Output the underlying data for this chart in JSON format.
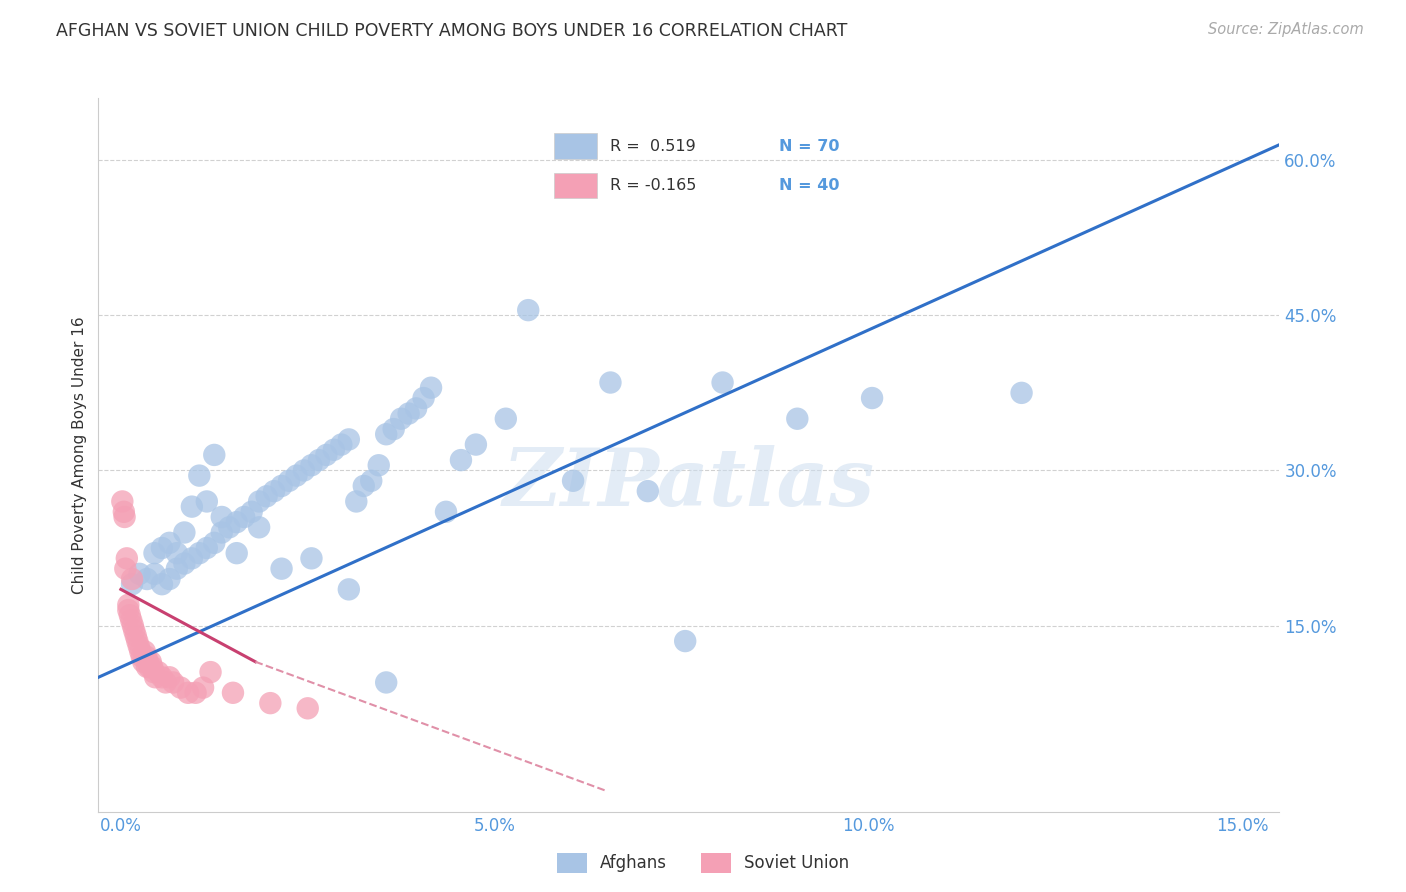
{
  "title": "AFGHAN VS SOVIET UNION CHILD POVERTY AMONG BOYS UNDER 16 CORRELATION CHART",
  "source": "Source: ZipAtlas.com",
  "ylabel": "Child Poverty Among Boys Under 16",
  "xticks": [
    0.0,
    5.0,
    10.0,
    15.0
  ],
  "xticklabels": [
    "0.0%",
    "5.0%",
    "10.0%",
    "15.0%"
  ],
  "yticks_right": [
    15.0,
    30.0,
    45.0,
    60.0
  ],
  "yticklabels_right": [
    "15.0%",
    "30.0%",
    "45.0%",
    "60.0%"
  ],
  "xlim": [
    -0.3,
    15.5
  ],
  "ylim": [
    -3.0,
    66.0
  ],
  "afghan_color": "#a8c4e5",
  "soviet_color": "#f4a0b5",
  "afghan_line_color": "#3070c8",
  "soviet_line_solid_color": "#c84070",
  "soviet_line_dash_color": "#e090a8",
  "background_color": "#ffffff",
  "grid_color": "#cccccc",
  "watermark": "ZIPatlas",
  "tick_color": "#5599dd",
  "afghans_x": [
    0.15,
    0.25,
    0.35,
    0.45,
    0.55,
    0.65,
    0.75,
    0.85,
    0.95,
    1.05,
    1.15,
    1.25,
    1.35,
    1.45,
    1.55,
    1.65,
    1.75,
    1.85,
    1.95,
    2.05,
    2.15,
    2.25,
    2.35,
    2.45,
    2.55,
    2.65,
    2.75,
    2.85,
    2.95,
    3.05,
    3.15,
    3.25,
    3.35,
    3.45,
    3.55,
    3.65,
    3.75,
    3.85,
    3.95,
    4.05,
    4.15,
    4.35,
    4.55,
    4.75,
    5.15,
    5.45,
    6.05,
    6.55,
    7.05,
    7.55,
    8.05,
    9.05,
    10.05,
    12.05,
    0.45,
    0.55,
    0.65,
    0.75,
    0.85,
    0.95,
    1.05,
    1.15,
    1.25,
    1.35,
    1.55,
    1.85,
    2.15,
    2.55,
    3.05,
    3.55
  ],
  "afghans_y": [
    19.0,
    20.0,
    19.5,
    20.0,
    19.0,
    19.5,
    20.5,
    21.0,
    21.5,
    22.0,
    22.5,
    23.0,
    24.0,
    24.5,
    25.0,
    25.5,
    26.0,
    27.0,
    27.5,
    28.0,
    28.5,
    29.0,
    29.5,
    30.0,
    30.5,
    31.0,
    31.5,
    32.0,
    32.5,
    33.0,
    27.0,
    28.5,
    29.0,
    30.5,
    33.5,
    34.0,
    35.0,
    35.5,
    36.0,
    37.0,
    38.0,
    26.0,
    31.0,
    32.5,
    35.0,
    45.5,
    29.0,
    38.5,
    28.0,
    13.5,
    38.5,
    35.0,
    37.0,
    37.5,
    22.0,
    22.5,
    23.0,
    22.0,
    24.0,
    26.5,
    29.5,
    27.0,
    31.5,
    25.5,
    22.0,
    24.5,
    20.5,
    21.5,
    18.5,
    9.5
  ],
  "soviet_x": [
    0.02,
    0.04,
    0.06,
    0.08,
    0.1,
    0.12,
    0.14,
    0.16,
    0.18,
    0.2,
    0.22,
    0.24,
    0.26,
    0.28,
    0.3,
    0.32,
    0.34,
    0.36,
    0.38,
    0.4,
    0.42,
    0.44,
    0.46,
    0.5,
    0.55,
    0.6,
    0.65,
    0.7,
    0.8,
    0.9,
    1.0,
    1.1,
    1.2,
    1.5,
    2.0,
    2.5,
    0.05,
    0.1,
    0.15,
    0.35
  ],
  "soviet_y": [
    27.0,
    26.0,
    20.5,
    21.5,
    16.5,
    16.0,
    15.5,
    15.0,
    14.5,
    14.0,
    13.5,
    13.0,
    12.5,
    12.0,
    11.5,
    12.5,
    12.0,
    11.5,
    11.0,
    11.5,
    11.0,
    10.5,
    10.0,
    10.5,
    10.0,
    9.5,
    10.0,
    9.5,
    9.0,
    8.5,
    8.5,
    9.0,
    10.5,
    8.5,
    7.5,
    7.0,
    25.5,
    17.0,
    19.5,
    11.0
  ],
  "af_line_x0": -0.3,
  "af_line_x1": 15.5,
  "af_line_y0": 10.0,
  "af_line_y1": 61.5,
  "sv_solid_x0": 0.0,
  "sv_solid_x1": 1.8,
  "sv_solid_y0": 18.5,
  "sv_solid_y1": 11.5,
  "sv_dash_x0": 1.8,
  "sv_dash_x1": 6.5,
  "sv_dash_y0": 11.5,
  "sv_dash_y1": -1.0
}
